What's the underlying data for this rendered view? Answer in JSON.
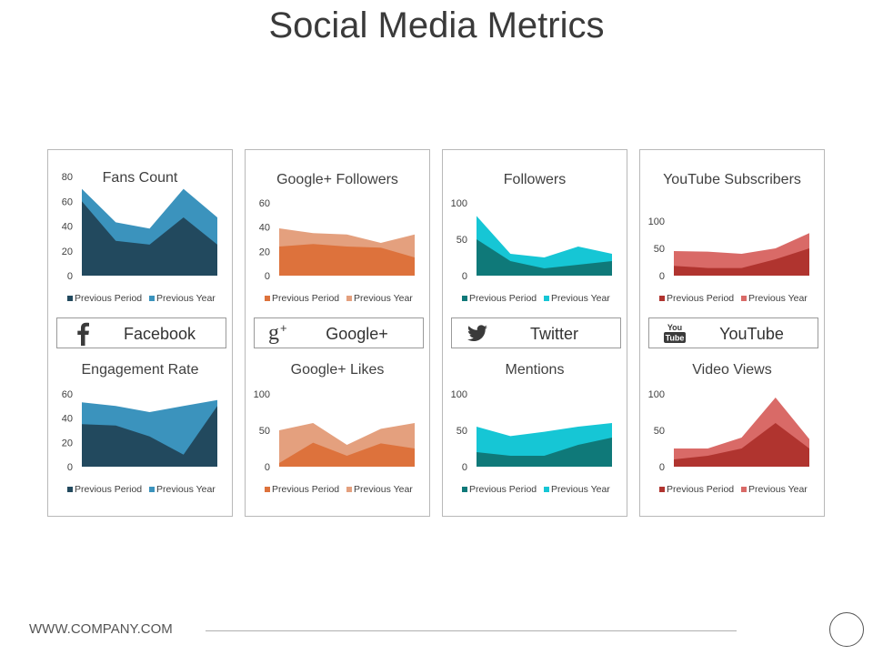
{
  "page": {
    "title": "Social Media Metrics",
    "footer_url": "WWW.COMPANY.COM"
  },
  "cards": [
    {
      "network": "Facebook",
      "icon": "facebook-icon",
      "top_title": "Fans Count",
      "bottom_title": "Engagement Rate"
    },
    {
      "network": "Google+",
      "icon": "google-plus-icon",
      "top_title": "Google+ Followers",
      "bottom_title": "Google+ Likes"
    },
    {
      "network": "Twitter",
      "icon": "twitter-icon",
      "top_title": "Followers",
      "bottom_title": "Mentions"
    },
    {
      "network": "YouTube",
      "icon": "youtube-icon",
      "top_title": "YouTube Subscribers",
      "bottom_title": "Video Views"
    }
  ],
  "chart_data": [
    {
      "type": "area",
      "title": "Fans Count",
      "ylim": [
        0,
        80
      ],
      "yticks": [
        0,
        20,
        40,
        60,
        80
      ],
      "colors": [
        "#22495e",
        "#3b93bd"
      ],
      "series": [
        {
          "name": "Previous Period",
          "values": [
            60,
            28,
            25,
            47,
            25
          ]
        },
        {
          "name": "Previous Year",
          "values": [
            70,
            43,
            38,
            70,
            47
          ]
        }
      ],
      "legend": "bottom"
    },
    {
      "type": "area",
      "title": "Engagement Rate",
      "ylim": [
        0,
        60
      ],
      "yticks": [
        0,
        20,
        40,
        60
      ],
      "colors": [
        "#22495e",
        "#3b93bd"
      ],
      "series": [
        {
          "name": "Previous Period",
          "values": [
            35,
            34,
            25,
            10,
            50
          ]
        },
        {
          "name": "Previous Year",
          "values": [
            53,
            50,
            45,
            50,
            55
          ]
        }
      ],
      "legend": "bottom"
    },
    {
      "type": "area",
      "title": "Google+ Followers",
      "ylim": [
        0,
        60
      ],
      "yticks": [
        0,
        20,
        40,
        60
      ],
      "colors": [
        "#dd723c",
        "#e4a07e"
      ],
      "series": [
        {
          "name": "Previous Period",
          "values": [
            24,
            26,
            24,
            23,
            15
          ]
        },
        {
          "name": "Previous Year",
          "values": [
            39,
            35,
            34,
            27,
            34
          ]
        }
      ],
      "legend": "bottom"
    },
    {
      "type": "area",
      "title": "Google+ Likes",
      "ylim": [
        0,
        100
      ],
      "yticks": [
        0,
        50,
        100
      ],
      "colors": [
        "#dd723c",
        "#e4a07e"
      ],
      "series": [
        {
          "name": "Previous Period",
          "values": [
            5,
            33,
            15,
            32,
            25
          ]
        },
        {
          "name": "Previous Year",
          "values": [
            50,
            60,
            30,
            52,
            60
          ]
        }
      ],
      "legend": "bottom"
    },
    {
      "type": "area",
      "title": "Followers",
      "ylim": [
        0,
        100
      ],
      "yticks": [
        0,
        50,
        100
      ],
      "colors": [
        "#0f7979",
        "#16c6d5"
      ],
      "series": [
        {
          "name": "Previous Period",
          "values": [
            50,
            20,
            10,
            15,
            20
          ]
        },
        {
          "name": "Previous Year",
          "values": [
            82,
            30,
            25,
            40,
            30
          ]
        }
      ],
      "legend": "bottom"
    },
    {
      "type": "area",
      "title": "Mentions",
      "ylim": [
        0,
        100
      ],
      "yticks": [
        0,
        50,
        100
      ],
      "colors": [
        "#0f7979",
        "#16c6d5"
      ],
      "series": [
        {
          "name": "Previous Period",
          "values": [
            20,
            15,
            15,
            30,
            40
          ]
        },
        {
          "name": "Previous Year",
          "values": [
            55,
            42,
            48,
            55,
            60
          ]
        }
      ],
      "legend": "bottom"
    },
    {
      "type": "area",
      "title": "YouTube Subscribers",
      "ylim": [
        0,
        100
      ],
      "yticks": [
        0,
        50,
        100
      ],
      "colors": [
        "#b0342f",
        "#d96a67"
      ],
      "series": [
        {
          "name": "Previous Period",
          "values": [
            18,
            14,
            14,
            30,
            50
          ]
        },
        {
          "name": "Previous Year",
          "values": [
            45,
            44,
            40,
            50,
            78
          ]
        }
      ],
      "legend": "bottom"
    },
    {
      "type": "area",
      "title": "Video Views",
      "ylim": [
        0,
        100
      ],
      "yticks": [
        0,
        50,
        100
      ],
      "colors": [
        "#b0342f",
        "#d96a67"
      ],
      "series": [
        {
          "name": "Previous Period",
          "values": [
            10,
            15,
            25,
            60,
            25
          ]
        },
        {
          "name": "Previous Year",
          "values": [
            25,
            25,
            40,
            95,
            38
          ]
        }
      ],
      "legend": "bottom"
    }
  ]
}
